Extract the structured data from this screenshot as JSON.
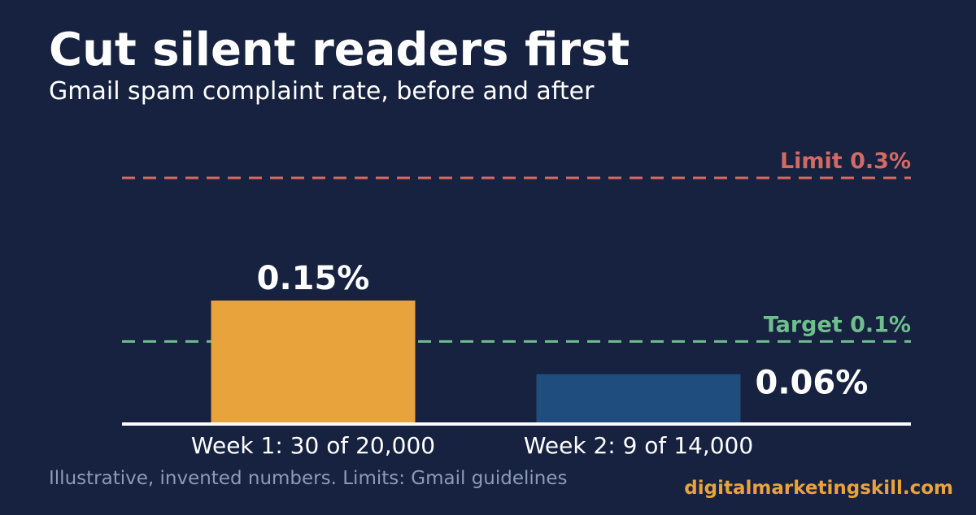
{
  "chart_data": {
    "type": "bar",
    "title": "Cut silent readers first",
    "subtitle": "Gmail spam complaint rate, before and after",
    "categories": [
      "Week 1: 30 of 20,000",
      "Week 2: 9 of 14,000"
    ],
    "values": [
      0.15,
      0.06
    ],
    "value_labels": [
      "0.15%",
      "0.06%"
    ],
    "colors": [
      "#e8a33d",
      "#1f4e7e"
    ],
    "ylim": [
      0,
      0.3
    ],
    "reference_lines": [
      {
        "value": 0.3,
        "label": "Limit 0.3%",
        "color": "#d46a64"
      },
      {
        "value": 0.1,
        "label": "Target 0.1%",
        "color": "#6fbf8e"
      }
    ],
    "footnote": "Illustrative, invented numbers. Limits: Gmail guidelines",
    "brand": "digitalmarketingskill.com"
  }
}
